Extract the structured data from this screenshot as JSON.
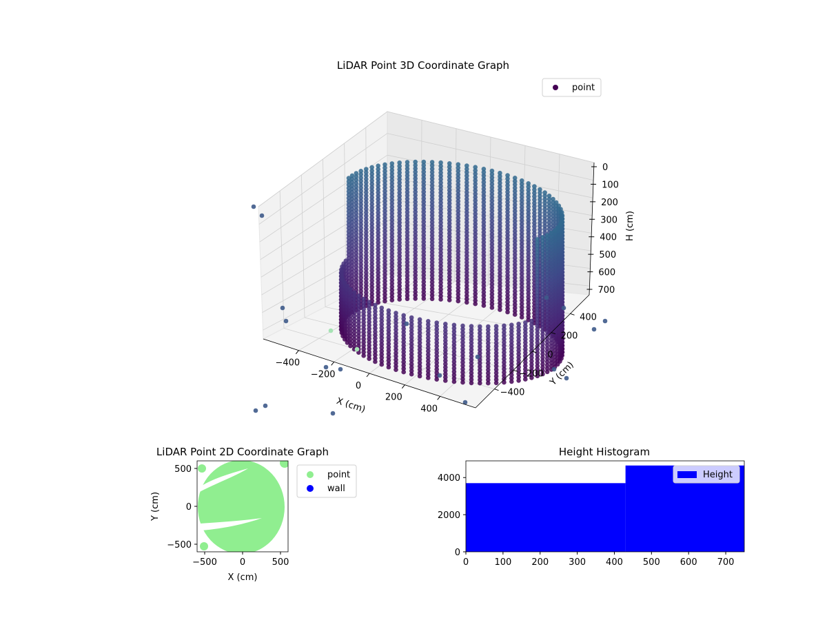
{
  "chart_data": [
    {
      "type": "scatter",
      "projection": "3d",
      "title": "LiDAR Point 3D Coordinate Graph",
      "xlabel": "X (cm)",
      "ylabel": "Y (cm)",
      "zlabel": "H (cm)",
      "xlim": [
        -600,
        600
      ],
      "ylim": [
        -600,
        600
      ],
      "zlim": [
        0,
        750
      ],
      "z_inverted": true,
      "xticks": [
        "−400",
        "−200",
        "0",
        "200",
        "400"
      ],
      "yticks": [
        "−400",
        "−200",
        "0",
        "200",
        "400"
      ],
      "zticks": [
        "0",
        "100",
        "200",
        "300",
        "400",
        "500",
        "600",
        "700"
      ],
      "grid": true,
      "legend": {
        "position": "top-right",
        "entries": [
          {
            "label": "point",
            "color": "#440154"
          }
        ]
      },
      "colormap": "viridis",
      "shape": "cylindrical wall of points, radius about 550 cm, heights 0 to 750 cm",
      "series": [
        {
          "name": "point"
        }
      ]
    },
    {
      "type": "scatter",
      "title": "LiDAR Point 2D Coordinate Graph",
      "xlabel": "X (cm)",
      "ylabel": "Y (cm)",
      "xlim": [
        -600,
        600
      ],
      "ylim": [
        -600,
        600
      ],
      "xticks": [
        "−500",
        "0",
        "500"
      ],
      "yticks": [
        "−500",
        "0",
        "500"
      ],
      "legend": {
        "position": "outside-right",
        "entries": [
          {
            "label": "point",
            "color": "#90ee90"
          },
          {
            "label": "wall",
            "color": "#0000ff"
          }
        ]
      },
      "series": [
        {
          "name": "point",
          "color": "#90ee90"
        },
        {
          "name": "wall",
          "color": "#0000ff"
        }
      ]
    },
    {
      "type": "bar",
      "subtype": "histogram",
      "title": "Height Histogram",
      "xlim": [
        0,
        750
      ],
      "ylim": [
        0,
        4900
      ],
      "xticks": [
        "0",
        "100",
        "200",
        "300",
        "400",
        "500",
        "600",
        "700"
      ],
      "yticks": [
        "0",
        "2000",
        "4000"
      ],
      "legend": {
        "position": "top-right",
        "entries": [
          {
            "label": "Height",
            "color": "#0000ff"
          }
        ]
      },
      "bins": [
        {
          "from": 0,
          "to": 430,
          "count": 3700
        },
        {
          "from": 430,
          "to": 750,
          "count": 4650
        }
      ],
      "series": [
        {
          "name": "Height",
          "color": "#0000ff"
        }
      ]
    }
  ]
}
